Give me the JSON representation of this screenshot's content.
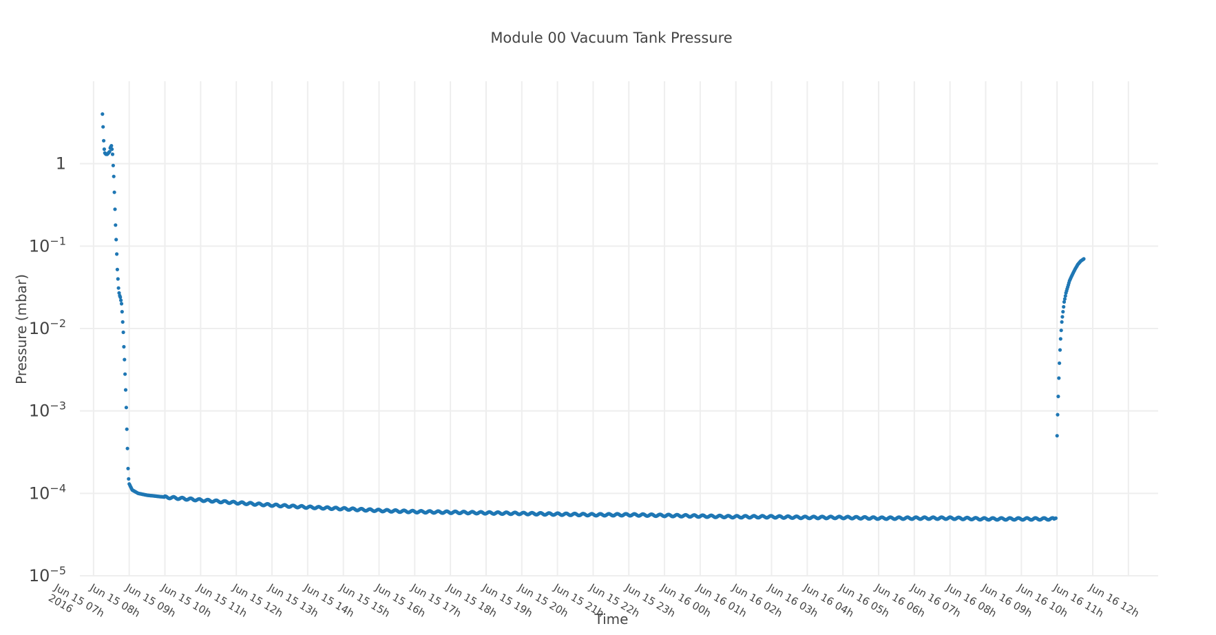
{
  "chart_data": {
    "type": "scatter",
    "title": "Module 00 Vacuum Tank Pressure",
    "xlabel": "Time",
    "ylabel": "Pressure (mbar)",
    "y_scale": "log",
    "grid": true,
    "legend": "none",
    "marker_color": "#1f77b4",
    "grid_color": "#eeeeee",
    "xlim": [
      "2016-06-15 06:37",
      "2016-06-16 12:50"
    ],
    "ylim": [
      1e-05,
      10
    ],
    "x_ticks": [
      {
        "lines": [
          "Jun 15 07h",
          "2016"
        ]
      },
      {
        "lines": [
          "Jun 15 08h"
        ]
      },
      {
        "lines": [
          "Jun 15 09h"
        ]
      },
      {
        "lines": [
          "Jun 15 10h"
        ]
      },
      {
        "lines": [
          "Jun 15 11h"
        ]
      },
      {
        "lines": [
          "Jun 15 12h"
        ]
      },
      {
        "lines": [
          "Jun 15 13h"
        ]
      },
      {
        "lines": [
          "Jun 15 14h"
        ]
      },
      {
        "lines": [
          "Jun 15 15h"
        ]
      },
      {
        "lines": [
          "Jun 15 16h"
        ]
      },
      {
        "lines": [
          "Jun 15 17h"
        ]
      },
      {
        "lines": [
          "Jun 15 18h"
        ]
      },
      {
        "lines": [
          "Jun 15 19h"
        ]
      },
      {
        "lines": [
          "Jun 15 20h"
        ]
      },
      {
        "lines": [
          "Jun 15 21h"
        ]
      },
      {
        "lines": [
          "Jun 15 22h"
        ]
      },
      {
        "lines": [
          "Jun 15 23h"
        ]
      },
      {
        "lines": [
          "Jun 16 00h"
        ]
      },
      {
        "lines": [
          "Jun 16 01h"
        ]
      },
      {
        "lines": [
          "Jun 16 02h"
        ]
      },
      {
        "lines": [
          "Jun 16 03h"
        ]
      },
      {
        "lines": [
          "Jun 16 04h"
        ]
      },
      {
        "lines": [
          "Jun 16 05h"
        ]
      },
      {
        "lines": [
          "Jun 16 06h"
        ]
      },
      {
        "lines": [
          "Jun 16 07h"
        ]
      },
      {
        "lines": [
          "Jun 16 08h"
        ]
      },
      {
        "lines": [
          "Jun 16 09h"
        ]
      },
      {
        "lines": [
          "Jun 16 10h"
        ]
      },
      {
        "lines": [
          "Jun 16 11h"
        ]
      },
      {
        "lines": [
          "Jun 16 12h"
        ]
      }
    ],
    "y_ticks": [
      {
        "base": "10",
        "exp": "−5",
        "value": 1e-05
      },
      {
        "base": "10",
        "exp": "−4",
        "value": 0.0001
      },
      {
        "base": "10",
        "exp": "−3",
        "value": 0.001
      },
      {
        "base": "10",
        "exp": "−2",
        "value": 0.01
      },
      {
        "base": "10",
        "exp": "−1",
        "value": 0.1
      },
      {
        "base": "1",
        "exp": "",
        "value": 1
      }
    ],
    "series": [
      {
        "points": [
          [
            "2016-06-15 07:15",
            4.0
          ],
          [
            "2016-06-15 07:16",
            2.8
          ],
          [
            "2016-06-15 07:17",
            1.9
          ],
          [
            "2016-06-15 07:18",
            1.5
          ],
          [
            "2016-06-15 07:19",
            1.35
          ],
          [
            "2016-06-15 07:21",
            1.3
          ],
          [
            "2016-06-15 07:23",
            1.3
          ],
          [
            "2016-06-15 07:25",
            1.35
          ],
          [
            "2016-06-15 07:27",
            1.4
          ],
          [
            "2016-06-15 07:28",
            1.55
          ],
          [
            "2016-06-15 07:29",
            1.6
          ],
          [
            "2016-06-15 07:30",
            1.65
          ],
          [
            "2016-06-15 07:31",
            1.5
          ],
          [
            "2016-06-15 07:32",
            1.3
          ],
          [
            "2016-06-15 07:33",
            0.95
          ],
          [
            "2016-06-15 07:34",
            0.7
          ],
          [
            "2016-06-15 07:35",
            0.45
          ],
          [
            "2016-06-15 07:36",
            0.28
          ],
          [
            "2016-06-15 07:37",
            0.18
          ],
          [
            "2016-06-15 07:38",
            0.12
          ],
          [
            "2016-06-15 07:39",
            0.08
          ],
          [
            "2016-06-15 07:40",
            0.052
          ],
          [
            "2016-06-15 07:41",
            0.04
          ],
          [
            "2016-06-15 07:42",
            0.031
          ],
          [
            "2016-06-15 07:43",
            0.027
          ],
          [
            "2016-06-15 07:44",
            0.025
          ],
          [
            "2016-06-15 07:45",
            0.024
          ],
          [
            "2016-06-15 07:46",
            0.022
          ],
          [
            "2016-06-15 07:47",
            0.02
          ],
          [
            "2016-06-15 07:48",
            0.016
          ],
          [
            "2016-06-15 07:49",
            0.012
          ],
          [
            "2016-06-15 07:50",
            0.009
          ],
          [
            "2016-06-15 07:51",
            0.006
          ],
          [
            "2016-06-15 07:52",
            0.0042
          ],
          [
            "2016-06-15 07:53",
            0.0028
          ],
          [
            "2016-06-15 07:54",
            0.0018
          ],
          [
            "2016-06-15 07:55",
            0.0011
          ],
          [
            "2016-06-15 07:56",
            0.0006
          ],
          [
            "2016-06-15 07:57",
            0.00035
          ],
          [
            "2016-06-15 07:58",
            0.0002
          ],
          [
            "2016-06-15 07:59",
            0.00015
          ],
          [
            "2016-06-15 08:00",
            0.00013
          ],
          [
            "2016-06-15 08:05",
            0.00011
          ],
          [
            "2016-06-15 08:15",
            0.0001
          ],
          [
            "2016-06-15 08:30",
            9.5e-05
          ],
          [
            "2016-06-15 09:00",
            9e-05
          ],
          [
            "2016-06-15 10:00",
            8.3e-05
          ],
          [
            "2016-06-15 11:00",
            7.7e-05
          ],
          [
            "2016-06-15 12:00",
            7.2e-05
          ],
          [
            "2016-06-15 13:00",
            6.8e-05
          ],
          [
            "2016-06-15 14:00",
            6.5e-05
          ],
          [
            "2016-06-15 15:00",
            6.2e-05
          ],
          [
            "2016-06-15 16:00",
            6e-05
          ],
          [
            "2016-06-15 17:00",
            5.9e-05
          ],
          [
            "2016-06-15 18:00",
            5.8e-05
          ],
          [
            "2016-06-15 19:00",
            5.7e-05
          ],
          [
            "2016-06-15 20:00",
            5.6e-05
          ],
          [
            "2016-06-15 21:00",
            5.5e-05
          ],
          [
            "2016-06-15 22:00",
            5.5e-05
          ],
          [
            "2016-06-15 23:00",
            5.4e-05
          ],
          [
            "2016-06-16 00:00",
            5.3e-05
          ],
          [
            "2016-06-16 01:00",
            5.2e-05
          ],
          [
            "2016-06-16 02:00",
            5.2e-05
          ],
          [
            "2016-06-16 03:00",
            5.1e-05
          ],
          [
            "2016-06-16 04:00",
            5.1e-05
          ],
          [
            "2016-06-16 05:00",
            5e-05
          ],
          [
            "2016-06-16 06:00",
            5e-05
          ],
          [
            "2016-06-16 07:00",
            5e-05
          ],
          [
            "2016-06-16 08:00",
            4.9e-05
          ],
          [
            "2016-06-16 09:00",
            4.9e-05
          ],
          [
            "2016-06-16 09:55",
            4.9e-05
          ],
          [
            "2016-06-16 09:58",
            5e-05
          ],
          [
            "2016-06-16 10:00",
            0.0005
          ],
          [
            "2016-06-16 10:01",
            0.0009
          ],
          [
            "2016-06-16 10:02",
            0.0015
          ],
          [
            "2016-06-16 10:03",
            0.0025
          ],
          [
            "2016-06-16 10:04",
            0.0038
          ],
          [
            "2016-06-16 10:05",
            0.0055
          ],
          [
            "2016-06-16 10:06",
            0.0075
          ],
          [
            "2016-06-16 10:07",
            0.0095
          ],
          [
            "2016-06-16 10:08",
            0.012
          ],
          [
            "2016-06-16 10:10",
            0.016
          ],
          [
            "2016-06-16 10:12",
            0.021
          ],
          [
            "2016-06-16 10:15",
            0.027
          ],
          [
            "2016-06-16 10:18",
            0.032
          ],
          [
            "2016-06-16 10:21",
            0.038
          ],
          [
            "2016-06-16 10:25",
            0.044
          ],
          [
            "2016-06-16 10:30",
            0.052
          ],
          [
            "2016-06-16 10:35",
            0.06
          ],
          [
            "2016-06-16 10:40",
            0.066
          ],
          [
            "2016-06-16 10:45",
            0.07
          ]
        ]
      }
    ]
  }
}
